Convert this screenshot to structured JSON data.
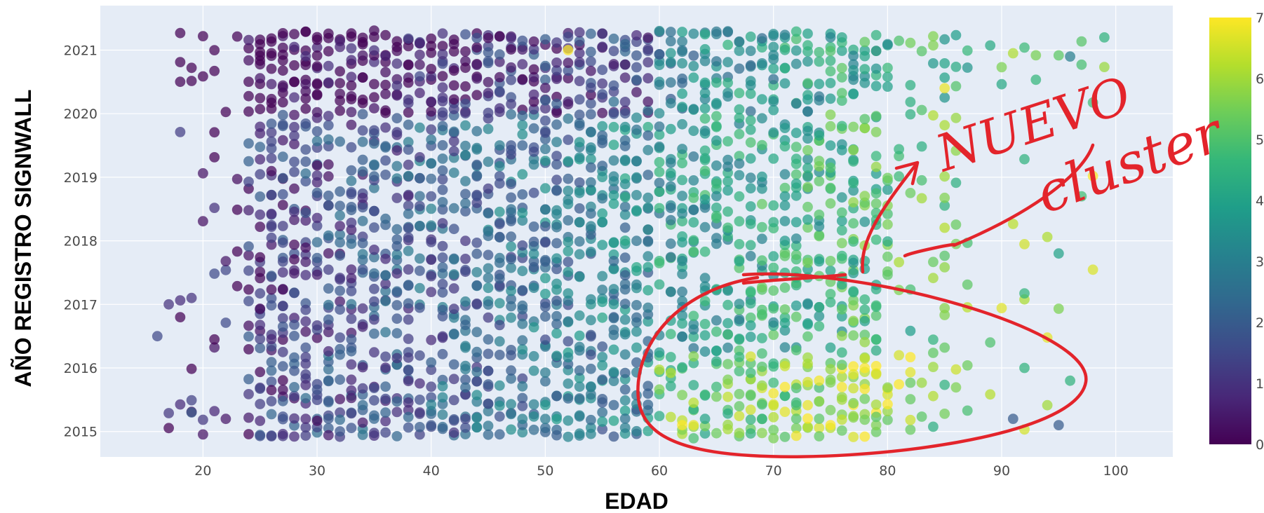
{
  "chart_data": {
    "type": "scatter",
    "xlabel": "EDAD",
    "ylabel": "AÑO REGISTRO SIGNWALL",
    "xlim": [
      11,
      105
    ],
    "ylim": [
      2014.6,
      2021.7
    ],
    "xticks": [
      20,
      30,
      40,
      50,
      60,
      70,
      80,
      90,
      100
    ],
    "yticks": [
      2015,
      2016,
      2017,
      2018,
      2019,
      2020,
      2021
    ],
    "grid": true,
    "colorscale": "viridis",
    "color_range": [
      0,
      7
    ],
    "colorbar_ticks": [
      0,
      1,
      2,
      3,
      4,
      5,
      6,
      7
    ],
    "colors": {
      "plot_bg": "#e5ecf6",
      "grid": "#ffffff",
      "annotation": "#e3242b"
    },
    "marker_opacity": 0.72,
    "seed": 7,
    "points_summary": [
      {
        "x": 16,
        "y": 2016.5,
        "color_value": 1.5
      },
      {
        "x": 17,
        "y": 2017.0,
        "color_value": 1.0
      },
      {
        "x": 19,
        "y": 2017.1,
        "color_value": 1.0
      },
      {
        "x": 19,
        "y": 2015.3,
        "color_value": 2.0
      },
      {
        "x": 52,
        "y": 2021.0,
        "color_value": 7.0
      },
      {
        "x": 62,
        "y": 2015.1,
        "color_value": 7.0
      },
      {
        "x": 63,
        "y": 2015.1,
        "color_value": 6.8
      },
      {
        "x": 70,
        "y": 2015.6,
        "color_value": 6.9
      },
      {
        "x": 71,
        "y": 2015.7,
        "color_value": 7.0
      },
      {
        "x": 74,
        "y": 2015.8,
        "color_value": 6.9
      },
      {
        "x": 75,
        "y": 2015.1,
        "color_value": 7.0
      },
      {
        "x": 79,
        "y": 2015.9,
        "color_value": 6.5
      },
      {
        "x": 85,
        "y": 2020.4,
        "color_value": 6.8
      },
      {
        "x": 89,
        "y": 2016.4,
        "color_value": 5.0
      },
      {
        "x": 91,
        "y": 2015.2,
        "color_value": 2.0
      },
      {
        "x": 92,
        "y": 2016.0,
        "color_value": 4.5
      },
      {
        "x": 95,
        "y": 2015.1,
        "color_value": 2.0
      },
      {
        "x": 95,
        "y": 2017.8,
        "color_value": 4.0
      },
      {
        "x": 96,
        "y": 2020.9,
        "color_value": 3.0
      },
      {
        "x": 96,
        "y": 2015.8,
        "color_value": 4.5
      },
      {
        "x": 99,
        "y": 2021.2,
        "color_value": 4.5
      }
    ],
    "annotations": {
      "handwritten_text_line1": "NUEVO",
      "handwritten_text_line2": "cluster"
    }
  }
}
